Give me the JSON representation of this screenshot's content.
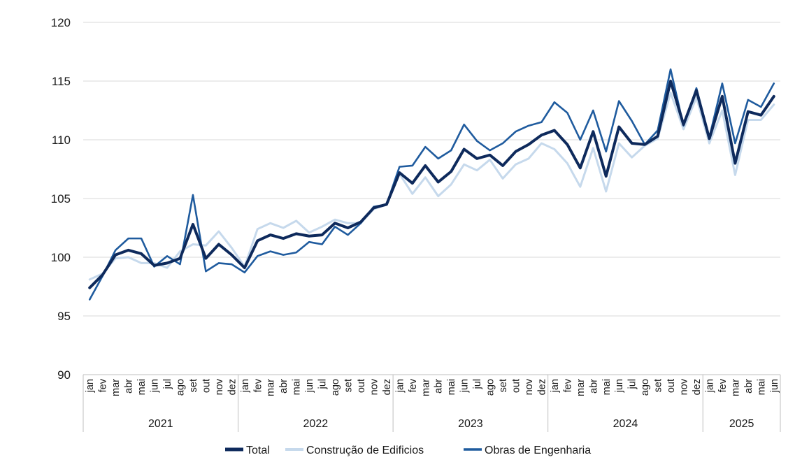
{
  "chart_data": {
    "type": "line",
    "title": "",
    "xlabel": "",
    "ylabel": "",
    "ylim": [
      90,
      120
    ],
    "yticks": [
      90,
      95,
      100,
      105,
      110,
      115,
      120
    ],
    "grid": true,
    "legend_position": "bottom-center",
    "months": [
      "jan",
      "fev",
      "mar",
      "abr",
      "mai",
      "jun",
      "jul",
      "ago",
      "set",
      "out",
      "nov",
      "dez"
    ],
    "years": [
      {
        "label": "2021",
        "months": 12
      },
      {
        "label": "2022",
        "months": 12
      },
      {
        "label": "2023",
        "months": 12
      },
      {
        "label": "2024",
        "months": 12
      },
      {
        "label": "2025",
        "months": 6
      }
    ],
    "series": [
      {
        "name": "Total",
        "color": "#0e2a5c",
        "values": [
          97.4,
          98.5,
          100.2,
          100.6,
          100.3,
          99.3,
          99.5,
          99.9,
          102.8,
          99.9,
          101.1,
          100.2,
          99.1,
          101.4,
          101.9,
          101.6,
          102.0,
          101.8,
          101.9,
          102.9,
          102.5,
          103.0,
          104.2,
          104.5,
          107.2,
          106.3,
          107.8,
          106.4,
          107.3,
          109.2,
          108.4,
          108.7,
          107.8,
          109.0,
          109.6,
          110.4,
          110.8,
          109.6,
          107.6,
          110.7,
          106.9,
          111.1,
          109.7,
          109.6,
          110.3,
          115.0,
          111.3,
          114.2,
          110.1,
          113.7,
          108.0,
          112.4,
          112.1,
          113.7
        ]
      },
      {
        "name": "Construção de Edificios",
        "color": "#c6d9ec",
        "values": [
          98.1,
          98.6,
          99.9,
          100.0,
          99.5,
          99.5,
          99.1,
          100.5,
          101.1,
          101.0,
          102.2,
          100.8,
          99.2,
          102.4,
          102.9,
          102.5,
          103.1,
          102.1,
          102.6,
          103.2,
          102.9,
          102.9,
          104.1,
          104.5,
          107.1,
          105.4,
          106.8,
          105.2,
          106.2,
          107.9,
          107.4,
          108.3,
          106.7,
          107.9,
          108.4,
          109.7,
          109.2,
          108.0,
          106.0,
          109.3,
          105.6,
          109.7,
          108.5,
          109.5,
          110.1,
          114.0,
          110.9,
          113.6,
          109.7,
          112.5,
          107.0,
          111.7,
          111.7,
          113.0
        ]
      },
      {
        "name": "Obras de Engenharia",
        "color": "#1f5b9e",
        "values": [
          96.4,
          98.4,
          100.6,
          101.6,
          101.6,
          99.2,
          100.1,
          99.4,
          105.3,
          98.8,
          99.5,
          99.4,
          98.7,
          100.1,
          100.5,
          100.2,
          100.4,
          101.3,
          101.1,
          102.6,
          101.9,
          102.9,
          104.3,
          104.5,
          107.7,
          107.8,
          109.4,
          108.4,
          109.1,
          111.3,
          109.9,
          109.1,
          109.7,
          110.7,
          111.2,
          111.5,
          113.2,
          112.3,
          110.0,
          112.5,
          109.0,
          113.3,
          111.6,
          109.6,
          110.8,
          116.0,
          111.2,
          114.4,
          110.2,
          114.8,
          109.7,
          113.4,
          112.8,
          114.8
        ]
      }
    ]
  }
}
